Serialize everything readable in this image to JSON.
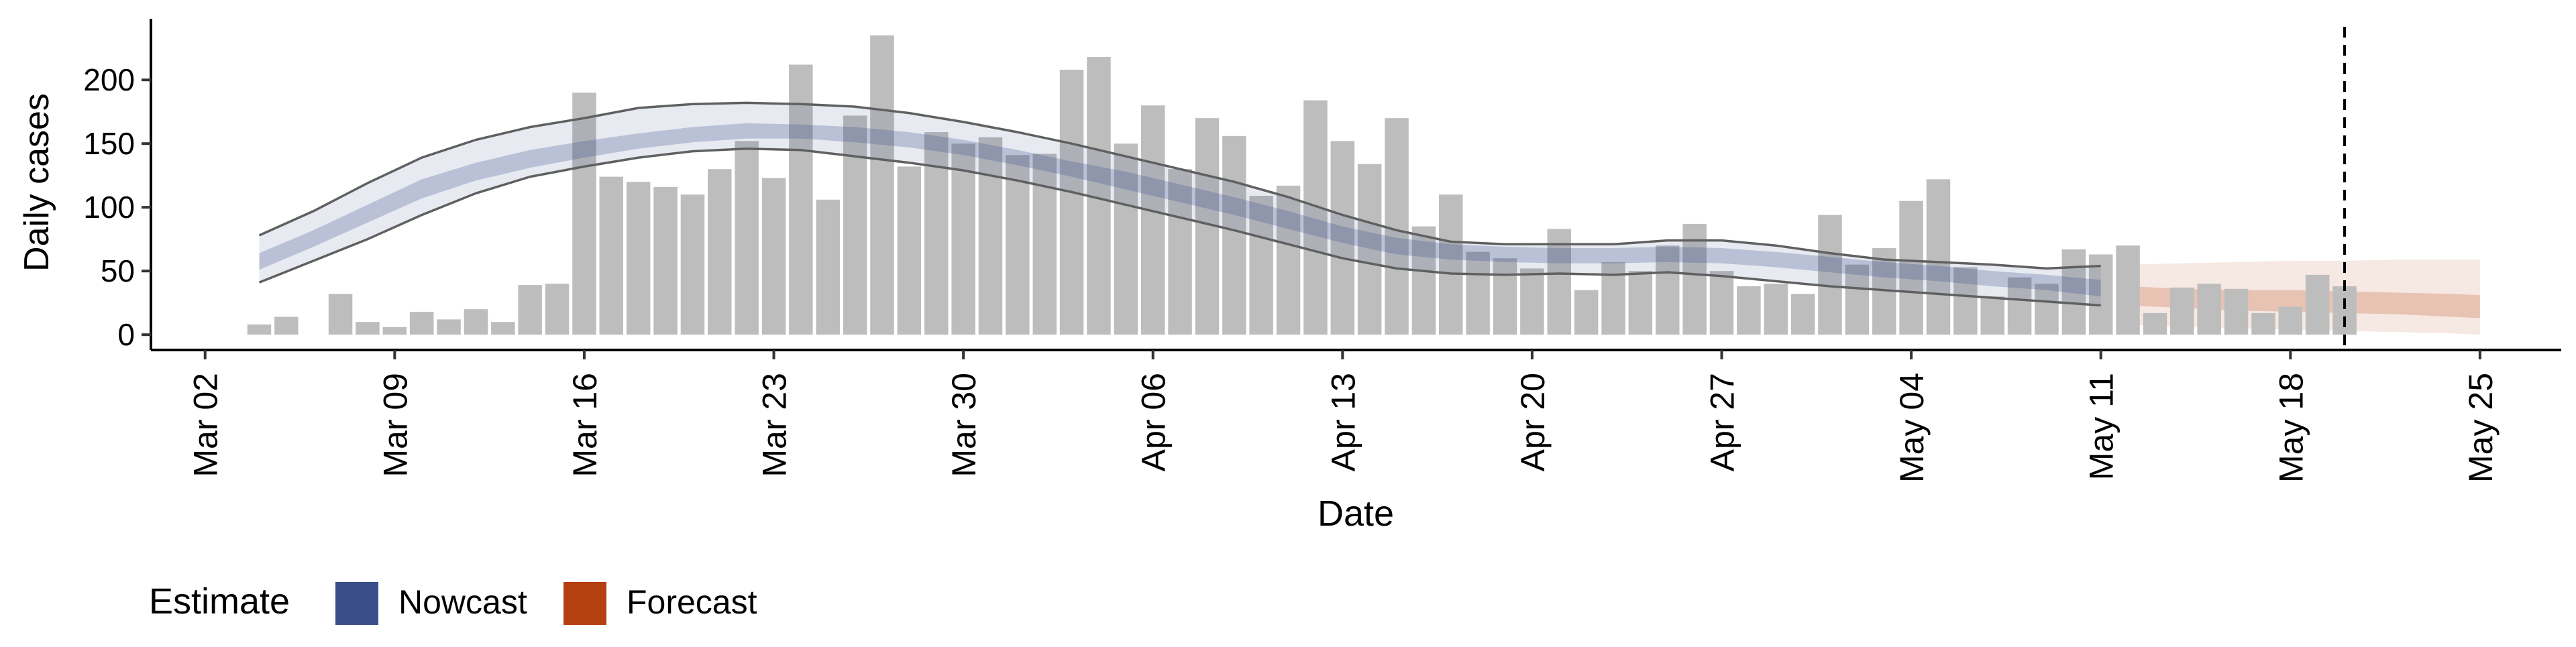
{
  "chart_data": {
    "type": "bar",
    "title": "",
    "xlabel": "Date",
    "ylabel": "Daily cases",
    "x_tick_labels": [
      "Mar 02",
      "Mar 09",
      "Mar 16",
      "Mar 23",
      "Mar 30",
      "Apr 06",
      "Apr 13",
      "Apr 20",
      "Apr 27",
      "May 04",
      "May 11",
      "May 18",
      "May 25"
    ],
    "x_tick_dates": [
      "2020-03-02",
      "2020-03-09",
      "2020-03-16",
      "2020-03-23",
      "2020-03-30",
      "2020-04-06",
      "2020-04-13",
      "2020-04-20",
      "2020-04-27",
      "2020-05-04",
      "2020-05-11",
      "2020-05-18",
      "2020-05-25"
    ],
    "y_ticks": [
      0,
      50,
      100,
      150,
      200
    ],
    "xlim": [
      "2020-02-29",
      "2020-05-28"
    ],
    "ylim": [
      -12,
      248
    ],
    "grid": false,
    "legend": {
      "title": "Estimate",
      "position": "bottom-left",
      "items": [
        {
          "label": "Nowcast",
          "color": "#3a4f8a"
        },
        {
          "label": "Forecast",
          "color": "#b5400f"
        }
      ]
    },
    "vline": {
      "date": "2020-05-20",
      "style": "dashed"
    },
    "bars": {
      "color": "#bdbdbd",
      "dates": [
        "2020-03-04",
        "2020-03-05",
        "2020-03-06",
        "2020-03-07",
        "2020-03-08",
        "2020-03-09",
        "2020-03-10",
        "2020-03-11",
        "2020-03-12",
        "2020-03-13",
        "2020-03-14",
        "2020-03-15",
        "2020-03-16",
        "2020-03-17",
        "2020-03-18",
        "2020-03-19",
        "2020-03-20",
        "2020-03-21",
        "2020-03-22",
        "2020-03-23",
        "2020-03-24",
        "2020-03-25",
        "2020-03-26",
        "2020-03-27",
        "2020-03-28",
        "2020-03-29",
        "2020-03-30",
        "2020-03-31",
        "2020-04-01",
        "2020-04-02",
        "2020-04-03",
        "2020-04-04",
        "2020-04-05",
        "2020-04-06",
        "2020-04-07",
        "2020-04-08",
        "2020-04-09",
        "2020-04-10",
        "2020-04-11",
        "2020-04-12",
        "2020-04-13",
        "2020-04-14",
        "2020-04-15",
        "2020-04-16",
        "2020-04-17",
        "2020-04-18",
        "2020-04-19",
        "2020-04-20",
        "2020-04-21",
        "2020-04-22",
        "2020-04-23",
        "2020-04-24",
        "2020-04-25",
        "2020-04-26",
        "2020-04-27",
        "2020-04-28",
        "2020-04-29",
        "2020-04-30",
        "2020-05-01",
        "2020-05-02",
        "2020-05-03",
        "2020-05-04",
        "2020-05-05",
        "2020-05-06",
        "2020-05-07",
        "2020-05-08",
        "2020-05-09",
        "2020-05-10",
        "2020-05-11",
        "2020-05-12",
        "2020-05-13",
        "2020-05-14",
        "2020-05-15",
        "2020-05-16",
        "2020-05-17",
        "2020-05-18",
        "2020-05-19",
        "2020-05-20"
      ],
      "values": [
        8,
        14,
        0,
        32,
        10,
        6,
        18,
        12,
        20,
        10,
        39,
        40,
        190,
        124,
        120,
        116,
        110,
        130,
        152,
        123,
        212,
        106,
        172,
        235,
        132,
        159,
        150,
        155,
        141,
        142,
        208,
        218,
        150,
        180,
        130,
        170,
        156,
        109,
        117,
        184,
        152,
        134,
        170,
        85,
        110,
        65,
        60,
        52,
        83,
        35,
        57,
        50,
        70,
        87,
        50,
        38,
        40,
        32,
        94,
        55,
        68,
        105,
        122,
        53,
        30,
        45,
        40,
        67,
        63,
        70,
        17,
        37,
        40,
        36,
        17,
        22,
        47,
        38
      ]
    },
    "nowcast": {
      "dates": [
        "2020-03-04",
        "2020-03-06",
        "2020-03-08",
        "2020-03-10",
        "2020-03-12",
        "2020-03-14",
        "2020-03-16",
        "2020-03-18",
        "2020-03-20",
        "2020-03-22",
        "2020-03-24",
        "2020-03-26",
        "2020-03-28",
        "2020-03-30",
        "2020-04-01",
        "2020-04-03",
        "2020-04-05",
        "2020-04-07",
        "2020-04-09",
        "2020-04-11",
        "2020-04-13",
        "2020-04-15",
        "2020-04-17",
        "2020-04-19",
        "2020-04-21",
        "2020-04-23",
        "2020-04-25",
        "2020-04-27",
        "2020-04-29",
        "2020-05-01",
        "2020-05-03",
        "2020-05-05",
        "2020-05-07",
        "2020-05-09",
        "2020-05-11"
      ],
      "median": [
        57,
        75,
        95,
        114,
        128,
        138,
        145,
        152,
        157,
        160,
        159,
        157,
        153,
        147,
        139,
        130,
        121,
        111,
        101,
        90,
        78,
        69,
        65,
        63,
        62,
        62,
        63,
        62,
        59,
        55,
        51,
        48,
        44,
        41,
        37
      ],
      "inner_lower": [
        51,
        69,
        88,
        107,
        121,
        131,
        139,
        146,
        151,
        154,
        154,
        151,
        147,
        141,
        133,
        124,
        114,
        104,
        94,
        83,
        72,
        63,
        59,
        57,
        56,
        56,
        57,
        56,
        53,
        49,
        45,
        42,
        38,
        35,
        30
      ],
      "inner_upper": [
        64,
        82,
        102,
        122,
        135,
        145,
        152,
        158,
        163,
        166,
        165,
        163,
        159,
        153,
        145,
        136,
        128,
        118,
        108,
        97,
        85,
        76,
        71,
        69,
        68,
        68,
        69,
        68,
        65,
        61,
        57,
        54,
        50,
        47,
        43
      ],
      "outer_lower": [
        41,
        58,
        75,
        94,
        111,
        124,
        132,
        139,
        144,
        146,
        145,
        140,
        135,
        129,
        121,
        112,
        102,
        92,
        82,
        71,
        60,
        52,
        48,
        47,
        48,
        47,
        49,
        46,
        42,
        38,
        35,
        32,
        29,
        26,
        23
      ],
      "outer_upper": [
        78,
        97,
        119,
        139,
        153,
        163,
        170,
        178,
        181,
        182,
        181,
        179,
        174,
        167,
        159,
        150,
        140,
        130,
        120,
        108,
        94,
        82,
        73,
        71,
        71,
        71,
        74,
        74,
        70,
        64,
        59,
        57,
        55,
        52,
        54
      ]
    },
    "forecast": {
      "dates": [
        "2020-05-12",
        "2020-05-14",
        "2020-05-16",
        "2020-05-18",
        "2020-05-20",
        "2020-05-22",
        "2020-05-24",
        "2020-05-25"
      ],
      "median": [
        30,
        28,
        27,
        26,
        25,
        24,
        22,
        21
      ],
      "inner_lower": [
        23,
        21,
        19,
        18,
        17,
        16,
        14,
        13
      ],
      "inner_upper": [
        38,
        36,
        35,
        35,
        34,
        33,
        32,
        31
      ],
      "outer_lower": [
        8,
        6,
        5,
        4,
        3,
        2,
        1,
        0
      ],
      "outer_upper": [
        55,
        56,
        57,
        58,
        58,
        59,
        59,
        59
      ]
    }
  }
}
